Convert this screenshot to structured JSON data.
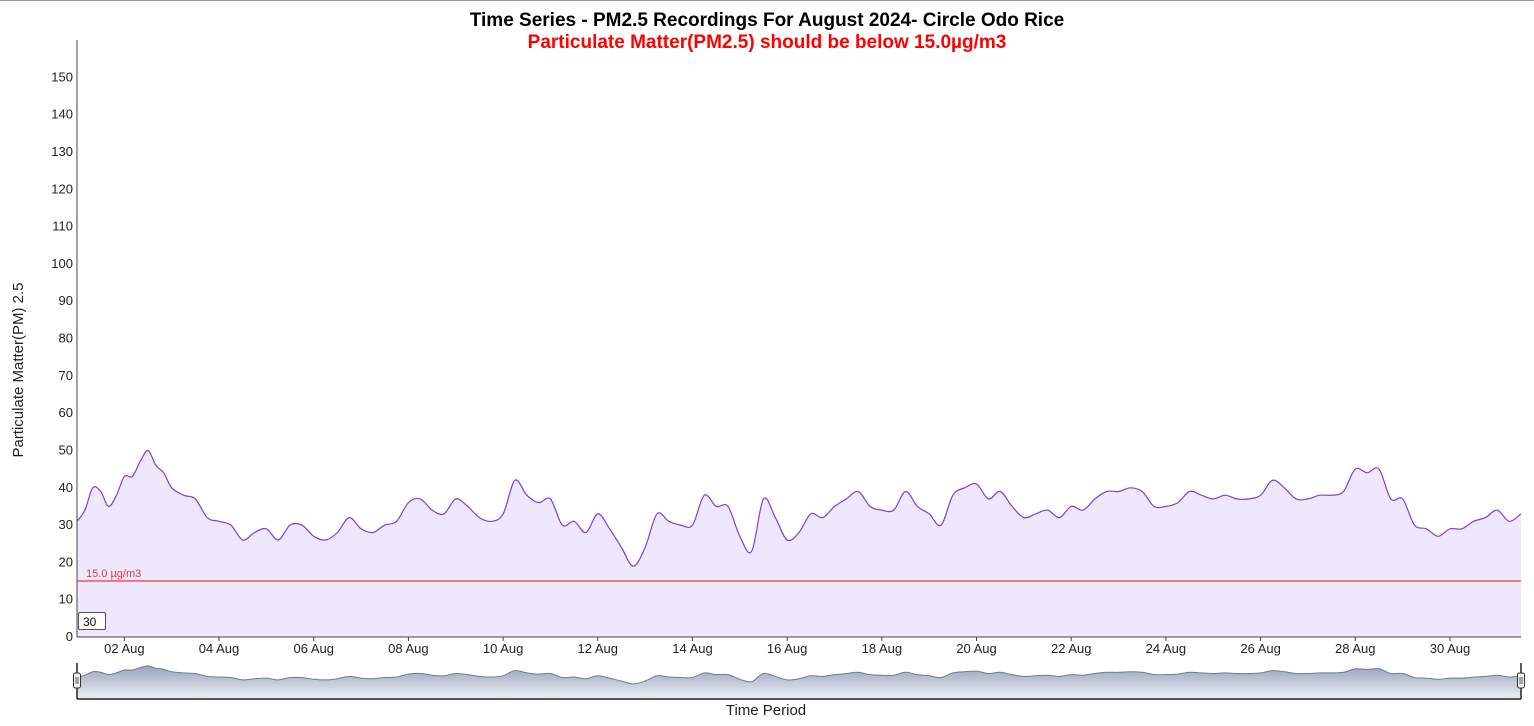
{
  "chart_data": {
    "type": "area",
    "title": "Time Series - PM2.5 Recordings For August 2024- Circle Odo Rice",
    "subtitle": "Particulate Matter(PM2.5) should be below 15.0µg/m3",
    "xlabel": "Time Period",
    "ylabel": "Particulate Matter(PM) 2.5",
    "ylim": [
      0,
      160
    ],
    "xlim": [
      "2024-08-01",
      "2024-08-31T12:00"
    ],
    "y_ticks": [
      0,
      10,
      20,
      30,
      40,
      50,
      60,
      70,
      80,
      90,
      100,
      110,
      120,
      130,
      140,
      150
    ],
    "x_ticks": [
      "2024-08-02",
      "2024-08-04",
      "2024-08-06",
      "2024-08-08",
      "2024-08-10",
      "2024-08-12",
      "2024-08-14",
      "2024-08-16",
      "2024-08-18",
      "2024-08-20",
      "2024-08-22",
      "2024-08-24",
      "2024-08-26",
      "2024-08-28",
      "2024-08-30"
    ],
    "x_tick_labels": [
      "02 Aug",
      "04 Aug",
      "06 Aug",
      "08 Aug",
      "10 Aug",
      "12 Aug",
      "14 Aug",
      "16 Aug",
      "18 Aug",
      "20 Aug",
      "22 Aug",
      "24 Aug",
      "26 Aug",
      "28 Aug",
      "30 Aug"
    ],
    "reference_line": {
      "value": 15.0,
      "label": "15.0 µg/m3",
      "color": "#e8393c"
    },
    "series": [
      {
        "color": "#7b3fe4",
        "fill": "#efe7fb",
        "x": [
          "2024-08-01T00:00",
          "2024-08-01T04:00",
          "2024-08-01T08:00",
          "2024-08-01T12:00",
          "2024-08-01T16:00",
          "2024-08-01T20:00",
          "2024-08-02T00:00",
          "2024-08-02T04:00",
          "2024-08-02T08:00",
          "2024-08-02T12:00",
          "2024-08-02T16:00",
          "2024-08-02T20:00",
          "2024-08-03T00:00",
          "2024-08-03T06:00",
          "2024-08-03T12:00",
          "2024-08-03T18:00",
          "2024-08-04T00:00",
          "2024-08-04T06:00",
          "2024-08-04T12:00",
          "2024-08-04T18:00",
          "2024-08-05T00:00",
          "2024-08-05T06:00",
          "2024-08-05T12:00",
          "2024-08-05T18:00",
          "2024-08-06T00:00",
          "2024-08-06T06:00",
          "2024-08-06T12:00",
          "2024-08-06T18:00",
          "2024-08-07T00:00",
          "2024-08-07T06:00",
          "2024-08-07T12:00",
          "2024-08-07T18:00",
          "2024-08-08T00:00",
          "2024-08-08T06:00",
          "2024-08-08T12:00",
          "2024-08-08T18:00",
          "2024-08-09T00:00",
          "2024-08-09T06:00",
          "2024-08-09T12:00",
          "2024-08-09T18:00",
          "2024-08-10T00:00",
          "2024-08-10T06:00",
          "2024-08-10T12:00",
          "2024-08-10T18:00",
          "2024-08-11T00:00",
          "2024-08-11T06:00",
          "2024-08-11T12:00",
          "2024-08-11T18:00",
          "2024-08-12T00:00",
          "2024-08-12T06:00",
          "2024-08-12T12:00",
          "2024-08-12T18:00",
          "2024-08-13T00:00",
          "2024-08-13T06:00",
          "2024-08-13T12:00",
          "2024-08-13T18:00",
          "2024-08-14T00:00",
          "2024-08-14T06:00",
          "2024-08-14T12:00",
          "2024-08-14T18:00",
          "2024-08-15T00:00",
          "2024-08-15T06:00",
          "2024-08-15T12:00",
          "2024-08-15T18:00",
          "2024-08-16T00:00",
          "2024-08-16T06:00",
          "2024-08-16T12:00",
          "2024-08-16T18:00",
          "2024-08-17T00:00",
          "2024-08-17T06:00",
          "2024-08-17T12:00",
          "2024-08-17T18:00",
          "2024-08-18T00:00",
          "2024-08-18T06:00",
          "2024-08-18T12:00",
          "2024-08-18T18:00",
          "2024-08-19T00:00",
          "2024-08-19T06:00",
          "2024-08-19T12:00",
          "2024-08-19T18:00",
          "2024-08-20T00:00",
          "2024-08-20T06:00",
          "2024-08-20T12:00",
          "2024-08-20T18:00",
          "2024-08-21T00:00",
          "2024-08-21T06:00",
          "2024-08-21T12:00",
          "2024-08-21T18:00",
          "2024-08-22T00:00",
          "2024-08-22T06:00",
          "2024-08-22T12:00",
          "2024-08-22T18:00",
          "2024-08-23T00:00",
          "2024-08-23T06:00",
          "2024-08-23T12:00",
          "2024-08-23T18:00",
          "2024-08-24T00:00",
          "2024-08-24T06:00",
          "2024-08-24T12:00",
          "2024-08-24T18:00",
          "2024-08-25T00:00",
          "2024-08-25T06:00",
          "2024-08-25T12:00",
          "2024-08-25T18:00",
          "2024-08-26T00:00",
          "2024-08-26T06:00",
          "2024-08-26T12:00",
          "2024-08-26T18:00",
          "2024-08-27T00:00",
          "2024-08-27T06:00",
          "2024-08-27T12:00",
          "2024-08-27T18:00",
          "2024-08-28T00:00",
          "2024-08-28T06:00",
          "2024-08-28T12:00",
          "2024-08-28T18:00",
          "2024-08-29T00:00",
          "2024-08-29T06:00",
          "2024-08-29T12:00",
          "2024-08-29T18:00",
          "2024-08-30T00:00",
          "2024-08-30T06:00",
          "2024-08-30T12:00",
          "2024-08-30T18:00",
          "2024-08-31T00:00",
          "2024-08-31T06:00",
          "2024-08-31T12:00"
        ],
        "values": [
          31,
          34,
          40,
          39,
          35,
          38,
          43,
          43,
          47,
          50,
          46,
          44,
          40,
          38,
          37,
          32,
          31,
          30,
          26,
          28,
          29,
          26,
          30,
          30,
          27,
          26,
          28,
          32,
          29,
          28,
          30,
          31,
          36,
          37,
          34,
          33,
          37,
          35,
          32,
          31,
          33,
          42,
          38,
          36,
          37,
          30,
          31,
          28,
          33,
          29,
          24,
          19,
          24,
          33,
          31,
          30,
          30,
          38,
          35,
          35,
          27,
          23,
          37,
          32,
          26,
          28,
          33,
          32,
          35,
          37,
          39,
          35,
          34,
          34,
          39,
          35,
          33,
          30,
          38,
          40,
          41,
          37,
          39,
          35,
          32,
          33,
          34,
          32,
          35,
          34,
          37,
          39,
          39,
          40,
          39,
          35,
          35,
          36,
          39,
          38,
          37,
          38,
          37,
          37,
          38,
          42,
          40,
          37,
          37,
          38,
          38,
          39,
          45,
          44,
          45,
          37,
          37,
          30,
          29,
          27,
          29,
          29,
          31,
          32,
          34,
          31,
          33
        ]
      }
    ]
  }
}
